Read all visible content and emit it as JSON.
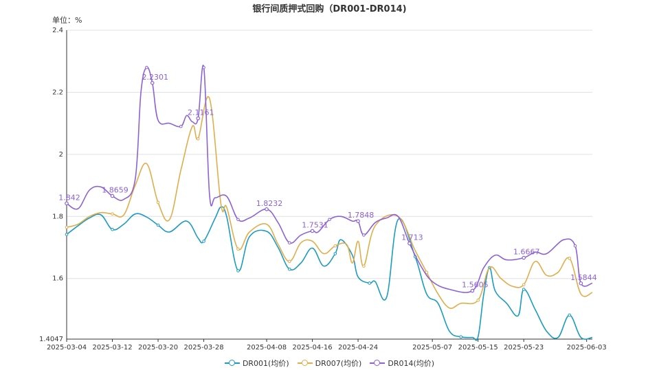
{
  "chart_data": {
    "type": "line",
    "title": "银行间质押式回购（DR001-DR014)",
    "unit_label": "单位：%",
    "ylim": [
      1.4047,
      2.4
    ],
    "y_ticks": [
      "1.4047",
      "1.6",
      "1.8",
      "2",
      "2.2",
      "2.4"
    ],
    "y_tick_values": [
      1.4047,
      1.6,
      1.8,
      2.0,
      2.2,
      2.4
    ],
    "x_tick_labels": [
      "2025-03-04",
      "2025-03-12",
      "2025-03-20",
      "2025-03-28",
      "2025-04-08",
      "2025-04-16",
      "2025-04-24",
      "2025-05-07",
      "2025-05-15",
      "2025-05-23",
      "2025-06-03"
    ],
    "x_tick_dates": [
      "2025-03-04",
      "2025-03-12",
      "2025-03-20",
      "2025-03-28",
      "2025-04-08",
      "2025-04-16",
      "2025-04-24",
      "2025-05-07",
      "2025-05-15",
      "2025-05-23",
      "2025-06-03"
    ],
    "grid": true,
    "legend_position": "bottom-center",
    "series": [
      {
        "name": "DR001(均价)",
        "color": "#1a9bc0",
        "points": [
          [
            "2025-03-04",
            1.742
          ],
          [
            "2025-03-06",
            1.77
          ],
          [
            "2025-03-08",
            1.795
          ],
          [
            "2025-03-10",
            1.805
          ],
          [
            "2025-03-12",
            1.758
          ],
          [
            "2025-03-14",
            1.775
          ],
          [
            "2025-03-16",
            1.808
          ],
          [
            "2025-03-18",
            1.798
          ],
          [
            "2025-03-20",
            1.772
          ],
          [
            "2025-03-22",
            1.75
          ],
          [
            "2025-03-25",
            1.785
          ],
          [
            "2025-03-27",
            1.73
          ],
          [
            "2025-03-28",
            1.72
          ],
          [
            "2025-03-30",
            1.795
          ],
          [
            "2025-03-31",
            1.83
          ],
          [
            "2025-04-01",
            1.8
          ],
          [
            "2025-04-03",
            1.625
          ],
          [
            "2025-04-05",
            1.735
          ],
          [
            "2025-04-08",
            1.752
          ],
          [
            "2025-04-10",
            1.7
          ],
          [
            "2025-04-12",
            1.63
          ],
          [
            "2025-04-14",
            1.65
          ],
          [
            "2025-04-16",
            1.698
          ],
          [
            "2025-04-18",
            1.64
          ],
          [
            "2025-04-20",
            1.68
          ],
          [
            "2025-04-21",
            1.725
          ],
          [
            "2025-04-23",
            1.675
          ],
          [
            "2025-04-24",
            1.605
          ],
          [
            "2025-04-26",
            1.585
          ],
          [
            "2025-04-27",
            1.59
          ],
          [
            "2025-04-29",
            1.54
          ],
          [
            "2025-05-01",
            1.79
          ],
          [
            "2025-05-04",
            1.67
          ],
          [
            "2025-05-06",
            1.55
          ],
          [
            "2025-05-08",
            1.52
          ],
          [
            "2025-05-10",
            1.43
          ],
          [
            "2025-05-12",
            1.412
          ],
          [
            "2025-05-14",
            1.41
          ],
          [
            "2025-05-15",
            1.412
          ],
          [
            "2025-05-16",
            1.55
          ],
          [
            "2025-05-17",
            1.635
          ],
          [
            "2025-05-18",
            1.56
          ],
          [
            "2025-05-20",
            1.52
          ],
          [
            "2025-05-22",
            1.48
          ],
          [
            "2025-05-23",
            1.565
          ],
          [
            "2025-05-25",
            1.5
          ],
          [
            "2025-05-27",
            1.43
          ],
          [
            "2025-05-29",
            1.41
          ],
          [
            "2025-05-31",
            1.482
          ],
          [
            "2025-06-02",
            1.41
          ],
          [
            "2025-06-04",
            1.41
          ]
        ]
      },
      {
        "name": "DR007(均价)",
        "color": "#e0ad4b",
        "points": [
          [
            "2025-03-04",
            1.765
          ],
          [
            "2025-03-06",
            1.775
          ],
          [
            "2025-03-08",
            1.8
          ],
          [
            "2025-03-10",
            1.812
          ],
          [
            "2025-03-12",
            1.808
          ],
          [
            "2025-03-14",
            1.805
          ],
          [
            "2025-03-16",
            1.9
          ],
          [
            "2025-03-18",
            1.97
          ],
          [
            "2025-03-20",
            1.845
          ],
          [
            "2025-03-22",
            1.79
          ],
          [
            "2025-03-24",
            1.95
          ],
          [
            "2025-03-26",
            2.09
          ],
          [
            "2025-03-27",
            2.05
          ],
          [
            "2025-03-29",
            2.18
          ],
          [
            "2025-03-31",
            1.84
          ],
          [
            "2025-04-01",
            1.83
          ],
          [
            "2025-04-03",
            1.695
          ],
          [
            "2025-04-05",
            1.75
          ],
          [
            "2025-04-08",
            1.775
          ],
          [
            "2025-04-10",
            1.71
          ],
          [
            "2025-04-12",
            1.655
          ],
          [
            "2025-04-14",
            1.715
          ],
          [
            "2025-04-16",
            1.72
          ],
          [
            "2025-04-18",
            1.68
          ],
          [
            "2025-04-20",
            1.705
          ],
          [
            "2025-04-22",
            1.71
          ],
          [
            "2025-04-23",
            1.65
          ],
          [
            "2025-04-24",
            1.72
          ],
          [
            "2025-04-25",
            1.64
          ],
          [
            "2025-04-27",
            1.77
          ],
          [
            "2025-05-01",
            1.8
          ],
          [
            "2025-05-04",
            1.69
          ],
          [
            "2025-05-06",
            1.62
          ],
          [
            "2025-05-08",
            1.55
          ],
          [
            "2025-05-10",
            1.505
          ],
          [
            "2025-05-12",
            1.52
          ],
          [
            "2025-05-15",
            1.53
          ],
          [
            "2025-05-17",
            1.635
          ],
          [
            "2025-05-19",
            1.6
          ],
          [
            "2025-05-21",
            1.575
          ],
          [
            "2025-05-23",
            1.58
          ],
          [
            "2025-05-25",
            1.655
          ],
          [
            "2025-05-27",
            1.61
          ],
          [
            "2025-05-29",
            1.62
          ],
          [
            "2025-05-31",
            1.665
          ],
          [
            "2025-06-02",
            1.55
          ],
          [
            "2025-06-04",
            1.555
          ]
        ]
      },
      {
        "name": "DR014(均价)",
        "color": "#8b62d6",
        "points": [
          [
            "2025-03-04",
            1.842
          ],
          [
            "2025-03-06",
            1.825
          ],
          [
            "2025-03-08",
            1.885
          ],
          [
            "2025-03-10",
            1.895
          ],
          [
            "2025-03-12",
            1.8659
          ],
          [
            "2025-03-14",
            1.855
          ],
          [
            "2025-03-16",
            1.92
          ],
          [
            "2025-03-17",
            2.2
          ],
          [
            "2025-03-18",
            2.28
          ],
          [
            "2025-03-19",
            2.2301
          ],
          [
            "2025-03-20",
            2.11
          ],
          [
            "2025-03-22",
            2.1
          ],
          [
            "2025-03-24",
            2.09
          ],
          [
            "2025-03-25",
            2.125
          ],
          [
            "2025-03-26",
            2.105
          ],
          [
            "2025-03-27",
            2.1161
          ],
          [
            "2025-03-28",
            2.28
          ],
          [
            "2025-03-29",
            1.87
          ],
          [
            "2025-03-30",
            1.86
          ],
          [
            "2025-04-01",
            1.865
          ],
          [
            "2025-04-03",
            1.79
          ],
          [
            "2025-04-05",
            1.795
          ],
          [
            "2025-04-08",
            1.8232
          ],
          [
            "2025-04-10",
            1.78
          ],
          [
            "2025-04-12",
            1.715
          ],
          [
            "2025-04-14",
            1.74
          ],
          [
            "2025-04-16",
            1.7531
          ],
          [
            "2025-04-17",
            1.75
          ],
          [
            "2025-04-19",
            1.79
          ],
          [
            "2025-04-21",
            1.8
          ],
          [
            "2025-04-23",
            1.785
          ],
          [
            "2025-04-24",
            1.7848
          ],
          [
            "2025-04-25",
            1.74
          ],
          [
            "2025-04-27",
            1.78
          ],
          [
            "2025-04-29",
            1.795
          ],
          [
            "2025-05-01",
            1.8
          ],
          [
            "2025-05-03",
            1.713
          ],
          [
            "2025-05-05",
            1.64
          ],
          [
            "2025-05-07",
            1.59
          ],
          [
            "2025-05-10",
            1.565
          ],
          [
            "2025-05-14",
            1.5605
          ],
          [
            "2025-05-16",
            1.635
          ],
          [
            "2025-05-18",
            1.675
          ],
          [
            "2025-05-20",
            1.66
          ],
          [
            "2025-05-23",
            1.6667
          ],
          [
            "2025-05-25",
            1.685
          ],
          [
            "2025-05-27",
            1.68
          ],
          [
            "2025-05-30",
            1.725
          ],
          [
            "2025-06-01",
            1.705
          ],
          [
            "2025-06-02",
            1.5844
          ],
          [
            "2025-06-04",
            1.585
          ]
        ]
      }
    ],
    "annotations": [
      {
        "series": "DR014(均价)",
        "date": "2025-03-04",
        "value": 1.842,
        "label": "1.842"
      },
      {
        "series": "DR014(均价)",
        "date": "2025-03-12",
        "value": 1.8659,
        "label": "1.8659"
      },
      {
        "series": "DR014(均价)",
        "date": "2025-03-19",
        "value": 2.2301,
        "label": "2.2301"
      },
      {
        "series": "DR014(均价)",
        "date": "2025-03-27",
        "value": 2.1161,
        "label": "2.1161"
      },
      {
        "series": "DR014(均价)",
        "date": "2025-04-08",
        "value": 1.8232,
        "label": "1.8232"
      },
      {
        "series": "DR014(均价)",
        "date": "2025-04-16",
        "value": 1.7531,
        "label": "1.7531"
      },
      {
        "series": "DR014(均价)",
        "date": "2025-04-24",
        "value": 1.7848,
        "label": "1.7848"
      },
      {
        "series": "DR014(均价)",
        "date": "2025-05-03",
        "value": 1.713,
        "label": "1.713"
      },
      {
        "series": "DR014(均价)",
        "date": "2025-05-14",
        "value": 1.5605,
        "label": "1.5605"
      },
      {
        "series": "DR014(均价)",
        "date": "2025-05-23",
        "value": 1.6667,
        "label": "1.6667"
      },
      {
        "series": "DR014(均价)",
        "date": "2025-06-02",
        "value": 1.5844,
        "label": "1.5844"
      }
    ],
    "x_range": [
      "2025-03-04",
      "2025-06-04"
    ]
  }
}
